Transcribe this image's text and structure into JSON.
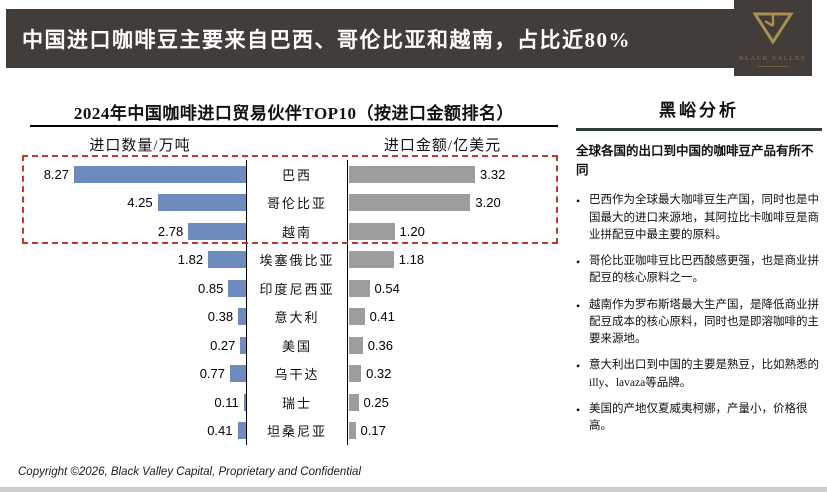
{
  "header": {
    "title": "中国进口咖啡豆主要来自巴西、哥伦比亚和越南，占比近80%",
    "logo_brand": "BLACK VALLEY"
  },
  "chart": {
    "title": "2024年中国咖啡进口贸易伙伴TOP10（按进口金额排名）",
    "left_axis_label": "进口数量/万吨",
    "right_axis_label": "进口金额/亿美元",
    "highlight_top_n": 3,
    "rows": [
      {
        "country": "巴西",
        "quantity": "8.27",
        "amount": "3.32"
      },
      {
        "country": "哥伦比亚",
        "quantity": "4.25",
        "amount": "3.20"
      },
      {
        "country": "越南",
        "quantity": "2.78",
        "amount": "1.20"
      },
      {
        "country": "埃塞俄比亚",
        "quantity": "1.82",
        "amount": "1.18"
      },
      {
        "country": "印度尼西亚",
        "quantity": "0.85",
        "amount": "0.54"
      },
      {
        "country": "意大利",
        "quantity": "0.38",
        "amount": "0.41"
      },
      {
        "country": "美国",
        "quantity": "0.27",
        "amount": "0.36"
      },
      {
        "country": "乌干达",
        "quantity": "0.77",
        "amount": "0.32"
      },
      {
        "country": "瑞士",
        "quantity": "0.11",
        "amount": "0.25"
      },
      {
        "country": "坦桑尼亚",
        "quantity": "0.41",
        "amount": "0.17"
      }
    ]
  },
  "chart_data": {
    "type": "bar",
    "orientation": "horizontal-mirrored",
    "title": "2024年中国咖啡进口贸易伙伴TOP10（按进口金额排名）",
    "categories": [
      "巴西",
      "哥伦比亚",
      "越南",
      "埃塞俄比亚",
      "印度尼西亚",
      "意大利",
      "美国",
      "乌干达",
      "瑞士",
      "坦桑尼亚"
    ],
    "series": [
      {
        "name": "进口数量/万吨",
        "values": [
          8.27,
          4.25,
          2.78,
          1.82,
          0.85,
          0.38,
          0.27,
          0.77,
          0.11,
          0.41
        ]
      },
      {
        "name": "进口金额/亿美元",
        "values": [
          3.32,
          3.2,
          1.2,
          1.18,
          0.54,
          0.41,
          0.36,
          0.32,
          0.25,
          0.17
        ]
      }
    ],
    "xlim_quantity": [
      0,
      8.27
    ],
    "xlim_amount": [
      0,
      3.32
    ],
    "grid": false,
    "legend_position": "column-headers",
    "highlight": "top 3 rows framed with red dashed box"
  },
  "analysis": {
    "title": "黑峪分析",
    "intro": "全球各国的出口到中国的咖啡豆产品有所不同",
    "bullets": [
      "巴西作为全球最大咖啡豆生产国，同时也是中国最大的进口来源地，其阿拉比卡咖啡豆是商业拼配豆中最主要的原料。",
      "哥伦比亚咖啡豆比巴西酸感更强，也是商业拼配豆的核心原料之一。",
      "越南作为罗布斯塔最大生产国，是降低商业拼配豆成本的核心原料，同时也是即溶咖啡的主要来源地。",
      "意大利出口到中国的主要是熟豆，比如熟悉的illy、lavaza等品牌。",
      "美国的产地仅夏威夷柯娜，产量小，价格很高。"
    ]
  },
  "footer": {
    "copyright": "Copyright ©2026, Black Valley Capital, Proprietary and Confidential"
  },
  "colors": {
    "header_bg": "#423d39",
    "logo_gold": "#a8904f",
    "bar_blue": "#6d8cbd",
    "bar_gray": "#9d9d9d",
    "highlight_red": "#c0392b"
  }
}
